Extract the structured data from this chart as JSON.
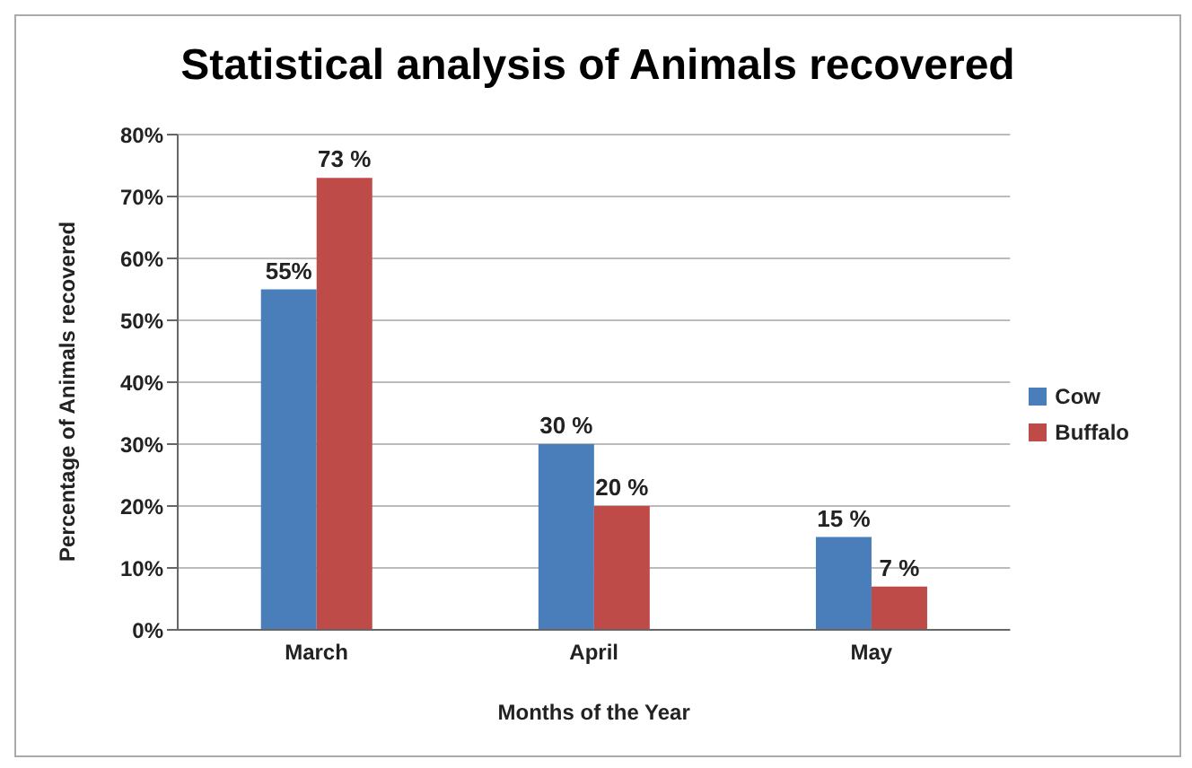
{
  "chart_data": {
    "type": "bar",
    "title": "Statistical analysis of Animals recovered",
    "xlabel": "Months of the Year",
    "ylabel": "Percentage of Animals recovered",
    "categories": [
      "March",
      "April",
      "May"
    ],
    "series": [
      {
        "name": "Cow",
        "color": "#4a7ebb",
        "values": [
          55,
          30,
          15
        ],
        "value_labels": [
          "55%",
          "30 %",
          "15 %"
        ]
      },
      {
        "name": "Buffalo",
        "color": "#be4b48",
        "values": [
          73,
          20,
          7
        ],
        "value_labels": [
          "73 %",
          "20 %",
          "7 %"
        ]
      }
    ],
    "ylim": [
      0,
      80
    ],
    "yticks": [
      {
        "value": 0,
        "label": "0%"
      },
      {
        "value": 10,
        "label": "10%"
      },
      {
        "value": 20,
        "label": "20%"
      },
      {
        "value": 30,
        "label": "30%"
      },
      {
        "value": 40,
        "label": "40%"
      },
      {
        "value": 50,
        "label": "50%"
      },
      {
        "value": 60,
        "label": "60%"
      },
      {
        "value": 70,
        "label": "70%"
      },
      {
        "value": 80,
        "label": "80%"
      }
    ],
    "grid": "y",
    "legend": "right"
  }
}
